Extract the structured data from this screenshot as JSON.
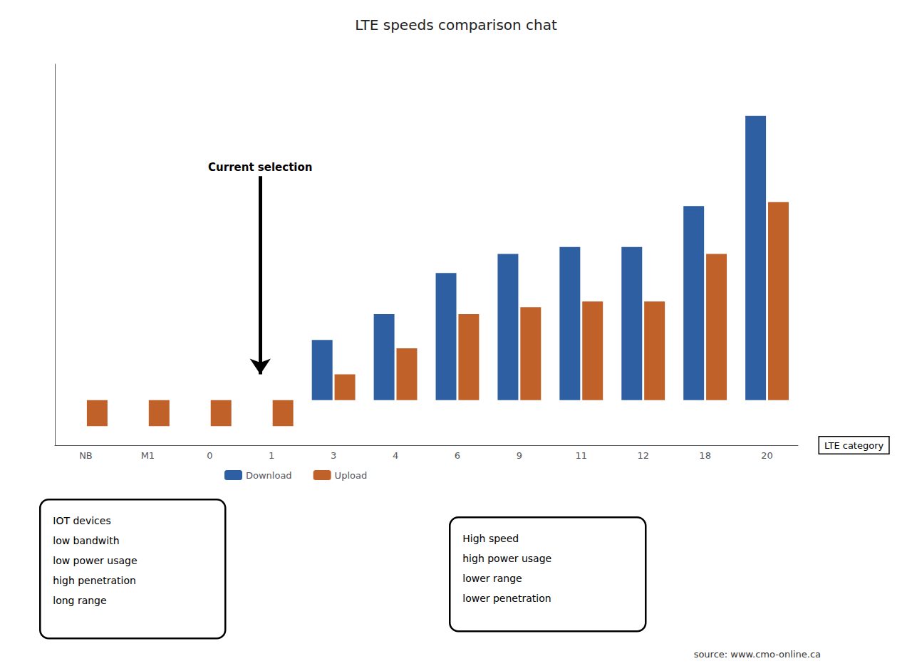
{
  "chart_data": {
    "type": "bar",
    "title": "LTE speeds comparison chat",
    "categories": [
      "NB",
      "M1",
      "0",
      "1",
      "3",
      "4",
      "6",
      "9",
      "11",
      "12",
      "18",
      "20"
    ],
    "series": [
      {
        "name": "Download",
        "color": "#2E5FA3",
        "values": [
          1,
          1,
          1,
          1,
          5,
          10,
          30,
          50,
          60,
          60,
          180,
          2000
        ]
      },
      {
        "name": "Upload",
        "color": "#C0612A",
        "values": [
          0.5,
          0.5,
          0.5,
          0.5,
          2,
          4,
          10,
          12,
          14,
          14,
          50,
          200
        ]
      }
    ],
    "xlabel": "LTE category",
    "ylim": [
      0.3,
      8000
    ],
    "yticks": [],
    "log": "y",
    "grid": false,
    "legend": "bottom",
    "tick_labels": "x",
    "annotations": [
      {
        "text": "Current selection",
        "category": "1"
      },
      {
        "text": "IOT devices\nlow bandwith\nlow power usage\nhigh penetration\nlong range"
      },
      {
        "text": "High speed\nhigh power usage\nlower range\nlower penetration"
      },
      {
        "text": "source: www.cmo-online.ca"
      }
    ]
  }
}
